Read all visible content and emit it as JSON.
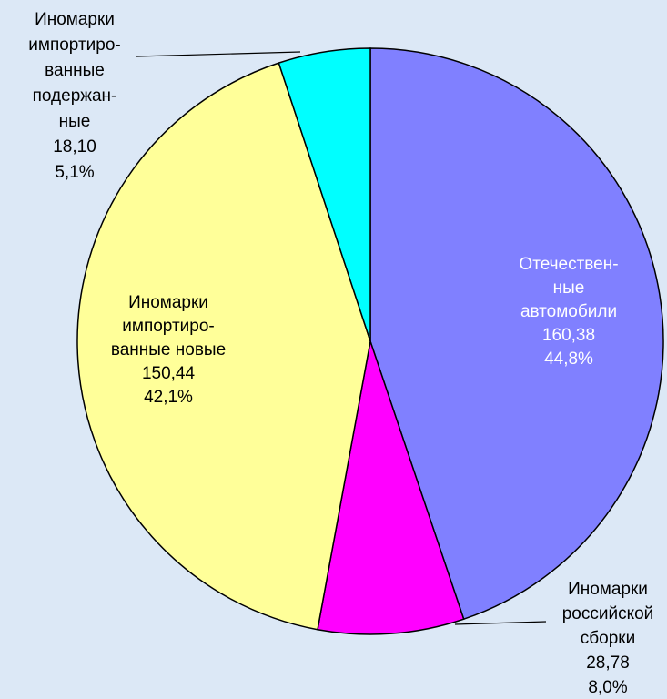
{
  "chart_data": {
    "type": "pie",
    "categories": [
      [
        "Отечествен-",
        "ные",
        "автомобили"
      ],
      [
        "Иномарки",
        "российской",
        "сборки"
      ],
      [
        "Иномарки",
        "импортиро-",
        "ванные новые"
      ],
      [
        "Иномарки",
        "импортиро-",
        "ванные",
        "подержан-",
        "ные"
      ]
    ],
    "values": [
      160.38,
      28.78,
      150.44,
      18.1
    ],
    "value_labels": [
      "160,38",
      "28,78",
      "150,44",
      "18,10"
    ],
    "percents": [
      44.8,
      8.0,
      42.1,
      5.1
    ],
    "percent_labels": [
      "44,8%",
      "8,0%",
      "42,1%",
      "5,1%"
    ],
    "colors": [
      "#8080ff",
      "#ff00ff",
      "#ffff99",
      "#00ffff"
    ]
  }
}
